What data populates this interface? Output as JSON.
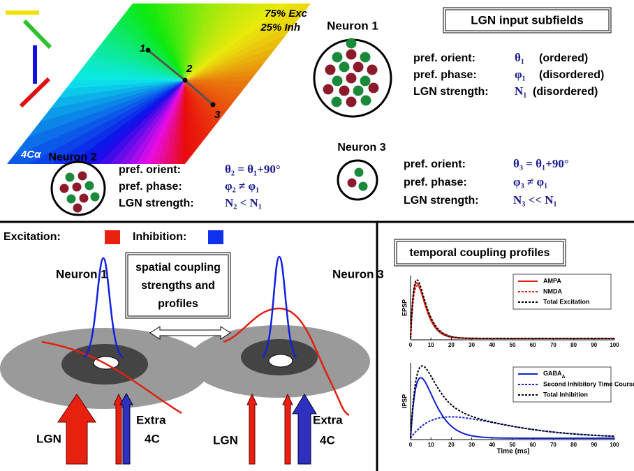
{
  "map": {
    "corner_text": [
      "75% Exc",
      "25% Inh"
    ],
    "layer": "4Cα",
    "points": [
      "1",
      "2",
      "3"
    ]
  },
  "neuron1": {
    "title": "Neuron 1",
    "rows": [
      [
        "pref. orient:",
        "θ₁",
        "(ordered)"
      ],
      [
        "pref. phase:",
        "φ₁",
        "(disordered)"
      ],
      [
        "LGN strength:",
        "N₁",
        "(disordered)"
      ]
    ]
  },
  "lgn_box": "LGN input subfields",
  "neuron2": {
    "title": "Neuron 2",
    "rows": [
      [
        "pref. orient:",
        "θ₂ = θ₁+90°"
      ],
      [
        "pref. phase:",
        "φ₂ ≠ φ₁"
      ],
      [
        "LGN strength:",
        "N₂ < N₁"
      ]
    ]
  },
  "neuron3": {
    "title": "Neuron 3",
    "rows": [
      [
        "pref. orient:",
        "θ₃ = θ₁+90°"
      ],
      [
        "pref. phase:",
        "φ₃ ≠ φ₁"
      ],
      [
        "LGN strength:",
        "N₃ << N₁"
      ]
    ]
  },
  "spatial": {
    "legend": [
      "Excitation:",
      "Inhibition:"
    ],
    "neuron_left": "Neuron 1",
    "neuron_right": "Neuron 3",
    "box": [
      "spatial coupling",
      "strengths and",
      "profiles"
    ],
    "left_inputs": {
      "lgn": "LGN",
      "extra": [
        "Extra",
        "4C"
      ]
    },
    "right_inputs": {
      "lgn": "LGN",
      "extra": [
        "Extra",
        "4C"
      ]
    }
  },
  "temporal": {
    "title": "temporal coupling profiles",
    "xlim": [
      0,
      100
    ],
    "xticks": [
      0,
      10,
      20,
      30,
      40,
      50,
      60,
      70,
      80,
      90,
      100
    ],
    "xlabel": "Time (ms)",
    "excitation": {
      "ylabel": "EPSP",
      "legend": [
        "AMPA",
        "NMDA",
        "Total Excitation"
      ]
    },
    "inhibition": {
      "ylabel": "IPSP",
      "legend": [
        {
          "base": "GABA",
          "sub": "A"
        },
        "Second Inhibitory Time Course",
        "Total Inhibition"
      ]
    }
  }
}
